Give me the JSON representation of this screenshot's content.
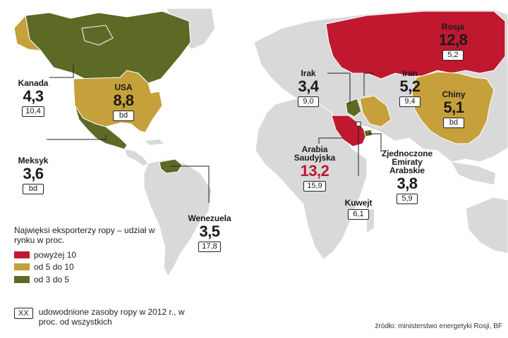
{
  "legend": {
    "title": "Najwięksi eksporterzy ropy – udział w rynku w proc.",
    "items": [
      {
        "label": "powyżej 10",
        "color": "#c0182f"
      },
      {
        "label": "od 5 do 10",
        "color": "#c6a03a"
      },
      {
        "label": "od 3 do 5",
        "color": "#5c6a26"
      }
    ]
  },
  "reserves_note": {
    "marker": "XX",
    "text": "udowodnione zasoby ropy w 2012 r., w proc. od wszystkich"
  },
  "source": "źródło: ministerstwo energetyki Rosji, BF",
  "countries": [
    {
      "name": "Kanada",
      "share": "4,3",
      "reserves": "10,4",
      "category": "od 3 do 5"
    },
    {
      "name": "USA",
      "share": "8,8",
      "reserves": "bd",
      "category": "od 5 do 10"
    },
    {
      "name": "Meksyk",
      "share": "3,6",
      "reserves": "bd",
      "category": "od 3 do 5"
    },
    {
      "name": "Wenezuela",
      "share": "3,5",
      "reserves": "17,8",
      "category": "od 3 do 5"
    },
    {
      "name": "Rosja",
      "share": "12,8",
      "reserves": "5,2",
      "category": "powyżej 10"
    },
    {
      "name": "Irak",
      "share": "3,4",
      "reserves": "9,0",
      "category": "od 3 do 5"
    },
    {
      "name": "Iran",
      "share": "5,2",
      "reserves": "9,4",
      "category": "od 5 do 10"
    },
    {
      "name": "Chiny",
      "share": "5,1",
      "reserves": "bd",
      "category": "od 5 do 10"
    },
    {
      "name": "Arabia Saudyjska",
      "share": "13,2",
      "reserves": "15,9",
      "category": "powyżej 10"
    },
    {
      "name": "Zjednoczone Emiraty Arabskie",
      "share": "3,8",
      "reserves": "5,9",
      "category": "od 3 do 5"
    },
    {
      "name": "Kuwejt",
      "share": "",
      "reserves": "6,1",
      "category": ""
    }
  ],
  "colors": {
    "land": "#d9d9d9",
    "land_border": "#ffffff",
    "leader": "#222222"
  }
}
